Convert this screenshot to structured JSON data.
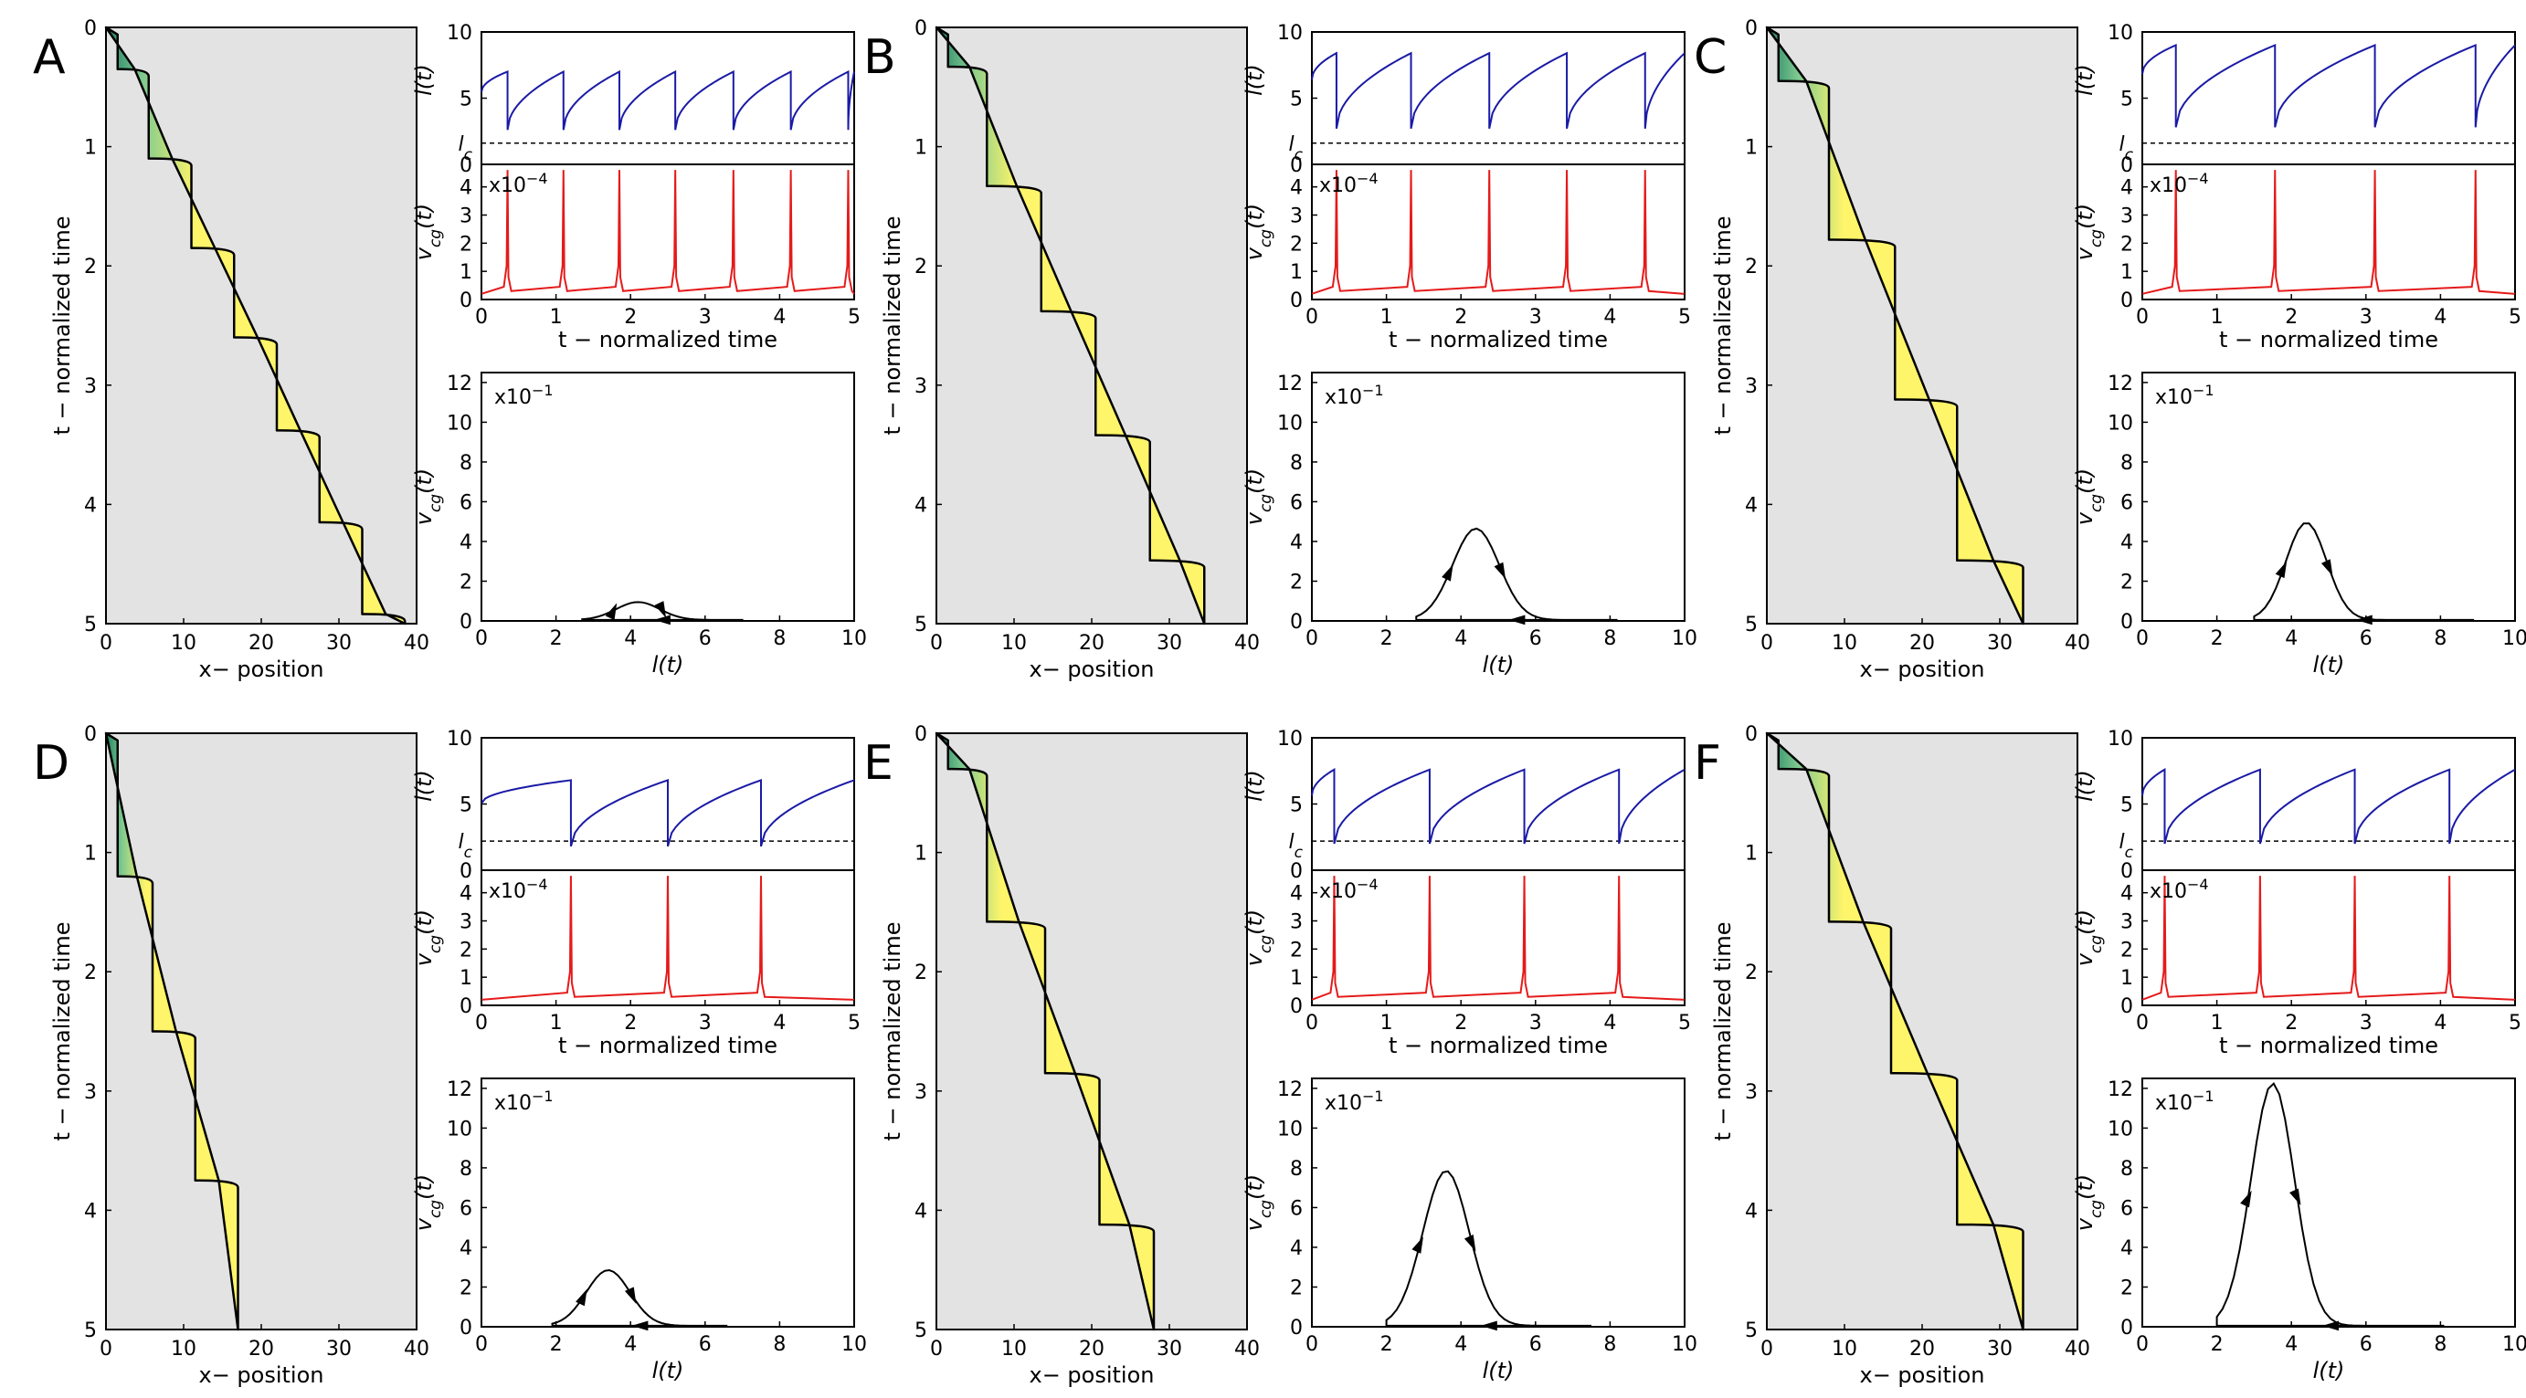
{
  "figure": {
    "colors": {
      "kymo_bg": "#e3e3e3",
      "cell_dark": "#1f7f63",
      "cell_mid": "#7ec98f",
      "cell_light": "#fff56a",
      "length_line": "#1a1aa6",
      "velocity_line": "#e51a1a",
      "outline": "#000000"
    }
  },
  "panels": [
    {
      "letter": "A",
      "kymo": {
        "xlabel": "x− position",
        "ylabel": "t − normalized time",
        "xticks": [
          "0",
          "10",
          "20",
          "30",
          "40"
        ],
        "yticks": [
          "0",
          "1",
          "2",
          "3",
          "4",
          "5"
        ]
      },
      "length": {
        "ylabel": "l(t)",
        "lc_label": "l",
        "lc_sub": "c",
        "yticks": [
          "0",
          "5",
          "10"
        ]
      },
      "velocity": {
        "ylabel": "v",
        "ylabel_sub": "cg",
        "ylabel_tail": "(t)",
        "scale": "x10",
        "scale_exp": "−4",
        "yticks": [
          "0",
          "1",
          "2",
          "3",
          "4"
        ],
        "xticks": [
          "0",
          "1",
          "2",
          "3",
          "4",
          "5"
        ],
        "xlabel": "t − normalized time"
      },
      "phase": {
        "ylabel": "v",
        "ylabel_sub": "cg",
        "ylabel_tail": "(t)",
        "scale": "x10",
        "scale_exp": "−1",
        "xlabel": "l(t)",
        "yticks": [
          "0",
          "2",
          "4",
          "6",
          "8",
          "10",
          "12"
        ],
        "xticks": [
          "0",
          "2",
          "4",
          "6",
          "8",
          "10"
        ]
      }
    },
    {
      "letter": "B",
      "kymo": {
        "xlabel": "x− position",
        "ylabel": "t − normalized time",
        "xticks": [
          "0",
          "10",
          "20",
          "30",
          "40"
        ],
        "yticks": [
          "0",
          "1",
          "2",
          "3",
          "4",
          "5"
        ]
      },
      "length": {
        "ylabel": "l(t)",
        "lc_label": "l",
        "lc_sub": "c",
        "yticks": [
          "0",
          "5",
          "10"
        ]
      },
      "velocity": {
        "ylabel": "v",
        "ylabel_sub": "cg",
        "ylabel_tail": "(t)",
        "scale": "x10",
        "scale_exp": "−4",
        "yticks": [
          "0",
          "1",
          "2",
          "3",
          "4"
        ],
        "xticks": [
          "0",
          "1",
          "2",
          "3",
          "4",
          "5"
        ],
        "xlabel": "t − normalized time"
      },
      "phase": {
        "ylabel": "v",
        "ylabel_sub": "cg",
        "ylabel_tail": "(t)",
        "scale": "x10",
        "scale_exp": "−1",
        "xlabel": "l(t)",
        "yticks": [
          "0",
          "2",
          "4",
          "6",
          "8",
          "10",
          "12"
        ],
        "xticks": [
          "0",
          "2",
          "4",
          "6",
          "8",
          "10"
        ]
      }
    },
    {
      "letter": "C",
      "kymo": {
        "xlabel": "x− position",
        "ylabel": "t − normalized time",
        "xticks": [
          "0",
          "10",
          "20",
          "30",
          "40"
        ],
        "yticks": [
          "0",
          "1",
          "2",
          "3",
          "4",
          "5"
        ]
      },
      "length": {
        "ylabel": "l(t)",
        "lc_label": "l",
        "lc_sub": "c",
        "yticks": [
          "0",
          "5",
          "10"
        ]
      },
      "velocity": {
        "ylabel": "v",
        "ylabel_sub": "cg",
        "ylabel_tail": "(t)",
        "scale": "x10",
        "scale_exp": "−4",
        "yticks": [
          "0",
          "1",
          "2",
          "3",
          "4"
        ],
        "xticks": [
          "0",
          "1",
          "2",
          "3",
          "4",
          "5"
        ],
        "xlabel": "t − normalized time"
      },
      "phase": {
        "ylabel": "v",
        "ylabel_sub": "cg",
        "ylabel_tail": "(t)",
        "scale": "x10",
        "scale_exp": "−1",
        "xlabel": "l(t)",
        "yticks": [
          "0",
          "2",
          "4",
          "6",
          "8",
          "10",
          "12"
        ],
        "xticks": [
          "0",
          "2",
          "4",
          "6",
          "8",
          "10"
        ]
      }
    },
    {
      "letter": "D",
      "kymo": {
        "xlabel": "x− position",
        "ylabel": "t − normalized time",
        "xticks": [
          "0",
          "10",
          "20",
          "30",
          "40"
        ],
        "yticks": [
          "0",
          "1",
          "2",
          "3",
          "4",
          "5"
        ]
      },
      "length": {
        "ylabel": "l(t)",
        "lc_label": "l",
        "lc_sub": "c",
        "yticks": [
          "0",
          "5",
          "10"
        ]
      },
      "velocity": {
        "ylabel": "v",
        "ylabel_sub": "cg",
        "ylabel_tail": "(t)",
        "scale": "x10",
        "scale_exp": "−4",
        "yticks": [
          "0",
          "1",
          "2",
          "3",
          "4"
        ],
        "xticks": [
          "0",
          "1",
          "2",
          "3",
          "4",
          "5"
        ],
        "xlabel": "t − normalized time"
      },
      "phase": {
        "ylabel": "v",
        "ylabel_sub": "cg",
        "ylabel_tail": "(t)",
        "scale": "x10",
        "scale_exp": "−1",
        "xlabel": "l(t)",
        "yticks": [
          "0",
          "2",
          "4",
          "6",
          "8",
          "10",
          "12"
        ],
        "xticks": [
          "0",
          "2",
          "4",
          "6",
          "8",
          "10"
        ]
      }
    },
    {
      "letter": "E",
      "kymo": {
        "xlabel": "x− position",
        "ylabel": "t − normalized time",
        "xticks": [
          "0",
          "10",
          "20",
          "30",
          "40"
        ],
        "yticks": [
          "0",
          "1",
          "2",
          "3",
          "4",
          "5"
        ]
      },
      "length": {
        "ylabel": "l(t)",
        "lc_label": "l",
        "lc_sub": "c",
        "yticks": [
          "0",
          "5",
          "10"
        ]
      },
      "velocity": {
        "ylabel": "v",
        "ylabel_sub": "cg",
        "ylabel_tail": "(t)",
        "scale": "x10",
        "scale_exp": "−4",
        "yticks": [
          "0",
          "1",
          "2",
          "3",
          "4"
        ],
        "xticks": [
          "0",
          "1",
          "2",
          "3",
          "4",
          "5"
        ],
        "xlabel": "t − normalized time"
      },
      "phase": {
        "ylabel": "v",
        "ylabel_sub": "cg",
        "ylabel_tail": "(t)",
        "scale": "x10",
        "scale_exp": "−1",
        "xlabel": "l(t)",
        "yticks": [
          "0",
          "2",
          "4",
          "6",
          "8",
          "10",
          "12"
        ],
        "xticks": [
          "0",
          "2",
          "4",
          "6",
          "8",
          "10"
        ]
      }
    },
    {
      "letter": "F",
      "kymo": {
        "xlabel": "x− position",
        "ylabel": "t − normalized time",
        "xticks": [
          "0",
          "10",
          "20",
          "30",
          "40"
        ],
        "yticks": [
          "0",
          "1",
          "2",
          "3",
          "4",
          "5"
        ]
      },
      "length": {
        "ylabel": "l(t)",
        "lc_label": "l",
        "lc_sub": "c",
        "yticks": [
          "0",
          "5",
          "10"
        ]
      },
      "velocity": {
        "ylabel": "v",
        "ylabel_sub": "cg",
        "ylabel_tail": "(t)",
        "scale": "x10",
        "scale_exp": "−4",
        "yticks": [
          "0",
          "1",
          "2",
          "3",
          "4"
        ],
        "xticks": [
          "0",
          "1",
          "2",
          "3",
          "4",
          "5"
        ],
        "xlabel": "t − normalized time"
      },
      "phase": {
        "ylabel": "v",
        "ylabel_sub": "cg",
        "ylabel_tail": "(t)",
        "scale": "x10",
        "scale_exp": "−1",
        "xlabel": "l(t)",
        "yticks": [
          "0",
          "2",
          "4",
          "6",
          "8",
          "10",
          "12"
        ],
        "xticks": [
          "0",
          "2",
          "4",
          "6",
          "8",
          "10"
        ]
      }
    }
  ],
  "chart_data": [
    {
      "panel": "A",
      "type": "composite",
      "kymograph": {
        "type": "area",
        "xlim": [
          0,
          40
        ],
        "ylim": [
          0,
          5
        ],
        "steps": [
          [
            0.0,
            1.5
          ],
          [
            0.35,
            5.5
          ],
          [
            1.1,
            11.0
          ],
          [
            1.85,
            16.5
          ],
          [
            2.6,
            22.0
          ],
          [
            3.38,
            27.5
          ],
          [
            4.15,
            33.0
          ],
          [
            4.92,
            38.5
          ]
        ],
        "front_end": 40
      },
      "length": {
        "type": "line",
        "xlim": [
          0,
          5
        ],
        "ylim": [
          0,
          10
        ],
        "lc": 1.6,
        "spikes": [
          0.35,
          1.1,
          1.85,
          2.6,
          3.38,
          4.15,
          4.92
        ],
        "min": 2.6,
        "max": 7.0
      },
      "velocity": {
        "type": "line",
        "xlim": [
          0,
          5
        ],
        "ylim": [
          0,
          4.8
        ],
        "spikes": [
          0.35,
          1.1,
          1.85,
          2.6,
          3.38,
          4.15,
          4.92
        ],
        "peak": 4.6,
        "base": 0.2
      },
      "phase": {
        "type": "line",
        "xlim": [
          0,
          10
        ],
        "ylim": [
          0,
          12.5
        ],
        "l_min": 2.7,
        "l_max": 7.0,
        "l_peak": 4.2,
        "v_peak": 0.9
      }
    },
    {
      "panel": "B",
      "type": "composite",
      "kymograph": {
        "type": "area",
        "xlim": [
          0,
          40
        ],
        "ylim": [
          0,
          5
        ],
        "steps": [
          [
            0.0,
            1.5
          ],
          [
            0.33,
            6.5
          ],
          [
            1.33,
            13.5
          ],
          [
            2.38,
            20.5
          ],
          [
            3.42,
            27.5
          ],
          [
            4.47,
            34.5
          ]
        ],
        "front_end": 40
      },
      "length": {
        "type": "line",
        "xlim": [
          0,
          5
        ],
        "ylim": [
          0,
          10
        ],
        "lc": 1.6,
        "spikes": [
          0.33,
          1.33,
          2.38,
          3.42,
          4.47
        ],
        "min": 2.7,
        "max": 8.4
      },
      "velocity": {
        "type": "line",
        "xlim": [
          0,
          5
        ],
        "ylim": [
          0,
          4.8
        ],
        "spikes": [
          0.33,
          1.33,
          2.38,
          3.42,
          4.47
        ],
        "peak": 4.6,
        "base": 0.2
      },
      "phase": {
        "type": "line",
        "xlim": [
          0,
          10
        ],
        "ylim": [
          0,
          12.5
        ],
        "l_min": 2.8,
        "l_max": 8.2,
        "l_peak": 4.4,
        "v_peak": 4.6
      }
    },
    {
      "panel": "C",
      "type": "composite",
      "kymograph": {
        "type": "area",
        "xlim": [
          0,
          40
        ],
        "ylim": [
          0,
          5
        ],
        "steps": [
          [
            0.0,
            1.5
          ],
          [
            0.45,
            8.0
          ],
          [
            1.78,
            16.5
          ],
          [
            3.12,
            24.5
          ],
          [
            4.47,
            33.0
          ]
        ],
        "front_end": 40
      },
      "length": {
        "type": "line",
        "xlim": [
          0,
          5
        ],
        "ylim": [
          0,
          10
        ],
        "lc": 1.6,
        "spikes": [
          0.45,
          1.78,
          3.12,
          4.47
        ],
        "min": 2.8,
        "max": 9.0
      },
      "velocity": {
        "type": "line",
        "xlim": [
          0,
          5
        ],
        "ylim": [
          0,
          4.8
        ],
        "spikes": [
          0.45,
          1.78,
          3.12,
          4.47
        ],
        "peak": 4.6,
        "base": 0.2
      },
      "phase": {
        "type": "line",
        "xlim": [
          0,
          10
        ],
        "ylim": [
          0,
          12.5
        ],
        "l_min": 3.0,
        "l_max": 8.9,
        "l_peak": 4.4,
        "v_peak": 4.9
      }
    },
    {
      "panel": "D",
      "type": "composite",
      "kymograph": {
        "type": "area",
        "xlim": [
          0,
          40
        ],
        "ylim": [
          0,
          5
        ],
        "steps": [
          [
            0.0,
            1.5
          ],
          [
            1.2,
            6.0
          ],
          [
            2.5,
            11.5
          ],
          [
            3.75,
            17.0
          ]
        ],
        "front_end": 23
      },
      "length": {
        "type": "line",
        "xlim": [
          0,
          5
        ],
        "ylim": [
          0,
          10
        ],
        "lc": 2.2,
        "spikes": [
          1.2,
          2.5,
          3.75
        ],
        "min": 1.8,
        "max": 6.8
      },
      "velocity": {
        "type": "line",
        "xlim": [
          0,
          5
        ],
        "ylim": [
          0,
          4.8
        ],
        "spikes": [
          1.2,
          2.5,
          3.75
        ],
        "peak": 4.6,
        "base": 0.2
      },
      "phase": {
        "type": "line",
        "xlim": [
          0,
          10
        ],
        "ylim": [
          0,
          12.5
        ],
        "l_min": 1.9,
        "l_max": 6.6,
        "l_peak": 3.4,
        "v_peak": 2.8
      }
    },
    {
      "panel": "E",
      "type": "composite",
      "kymograph": {
        "type": "area",
        "xlim": [
          0,
          40
        ],
        "ylim": [
          0,
          5
        ],
        "steps": [
          [
            0.0,
            1.5
          ],
          [
            0.3,
            6.5
          ],
          [
            1.58,
            14.0
          ],
          [
            2.85,
            21.0
          ],
          [
            4.12,
            28.0
          ]
        ],
        "front_end": 34
      },
      "length": {
        "type": "line",
        "xlim": [
          0,
          5
        ],
        "ylim": [
          0,
          10
        ],
        "lc": 2.2,
        "spikes": [
          0.3,
          1.58,
          2.85,
          4.12
        ],
        "min": 2.0,
        "max": 7.6
      },
      "velocity": {
        "type": "line",
        "xlim": [
          0,
          5
        ],
        "ylim": [
          0,
          4.8
        ],
        "spikes": [
          0.3,
          1.58,
          2.85,
          4.12
        ],
        "peak": 4.6,
        "base": 0.2
      },
      "phase": {
        "type": "line",
        "xlim": [
          0,
          10
        ],
        "ylim": [
          0,
          12.5
        ],
        "l_min": 2.0,
        "l_max": 7.5,
        "l_peak": 3.6,
        "v_peak": 7.8
      }
    },
    {
      "panel": "F",
      "type": "composite",
      "kymograph": {
        "type": "area",
        "xlim": [
          0,
          40
        ],
        "ylim": [
          0,
          5
        ],
        "steps": [
          [
            0.0,
            1.5
          ],
          [
            0.3,
            8.0
          ],
          [
            1.58,
            16.0
          ],
          [
            2.85,
            24.5
          ],
          [
            4.12,
            33.0
          ]
        ],
        "front_end": 38
      },
      "length": {
        "type": "line",
        "xlim": [
          0,
          5
        ],
        "ylim": [
          0,
          10
        ],
        "lc": 2.2,
        "spikes": [
          0.3,
          1.58,
          2.85,
          4.12
        ],
        "min": 2.0,
        "max": 7.6
      },
      "velocity": {
        "type": "line",
        "xlim": [
          0,
          5
        ],
        "ylim": [
          0,
          4.8
        ],
        "spikes": [
          0.3,
          1.58,
          2.85,
          4.12
        ],
        "peak": 4.6,
        "base": 0.2
      },
      "phase": {
        "type": "line",
        "xlim": [
          0,
          10
        ],
        "ylim": [
          0,
          12.5
        ],
        "l_min": 2.0,
        "l_max": 8.1,
        "l_peak": 3.5,
        "v_peak": 12.2
      }
    }
  ]
}
